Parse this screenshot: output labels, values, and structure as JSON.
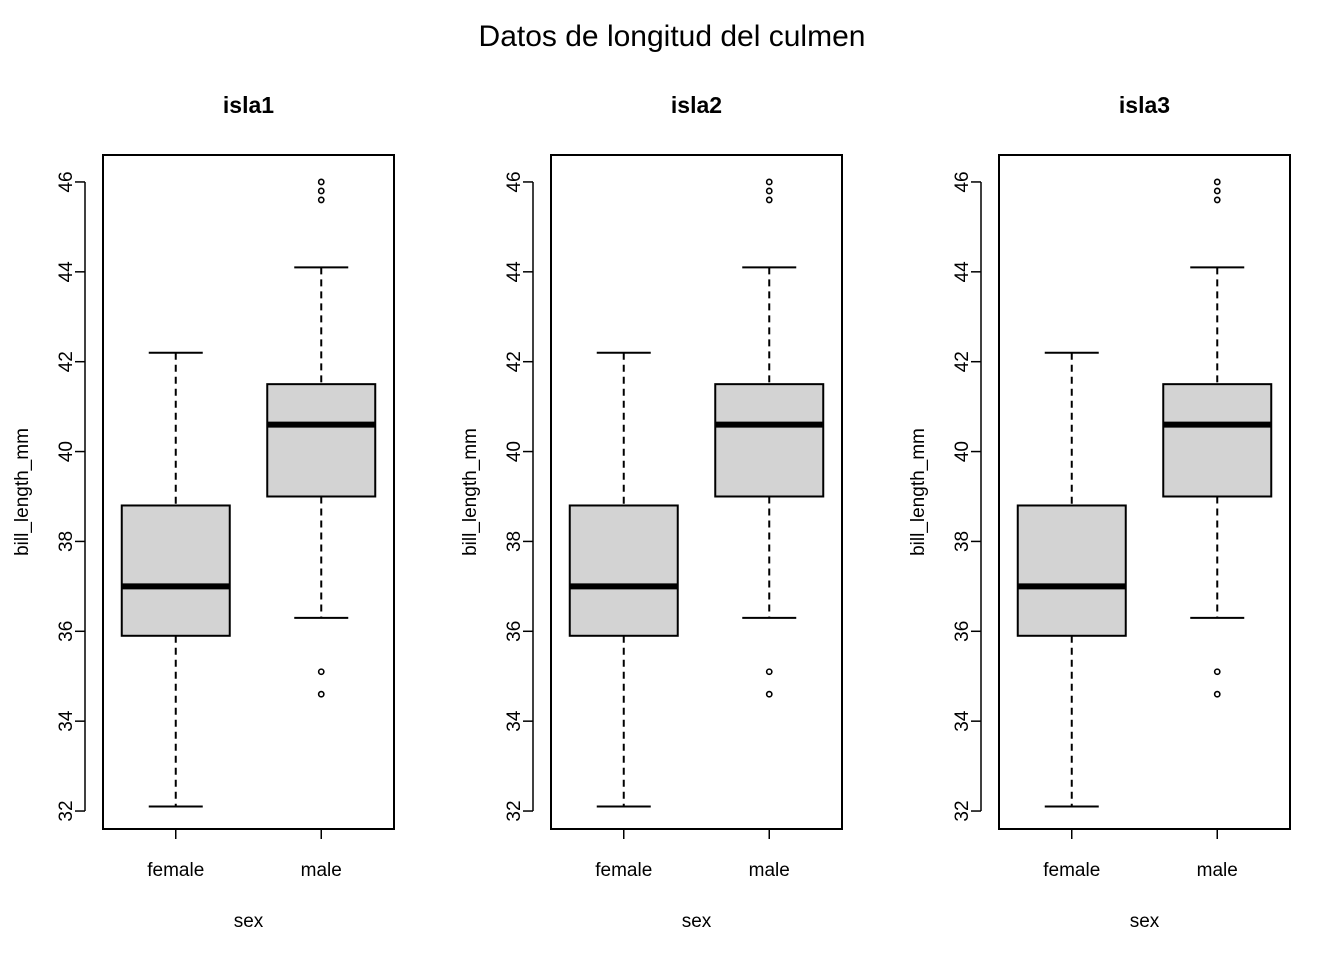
{
  "chart_data": {
    "title": "Datos de longitud del culmen",
    "type": "box",
    "panels": [
      {
        "title": "isla1",
        "xlabel": "sex",
        "ylabel": "bill_length_mm",
        "categories": [
          "female",
          "male"
        ],
        "ylim": [
          31.6,
          46.6
        ],
        "yticks": [
          32,
          34,
          36,
          38,
          40,
          42,
          44,
          46
        ],
        "boxes": [
          {
            "category": "female",
            "whisker_low": 32.1,
            "q1": 35.9,
            "median": 37.0,
            "q3": 38.8,
            "whisker_high": 42.2,
            "outliers": []
          },
          {
            "category": "male",
            "whisker_low": 36.3,
            "q1": 39.0,
            "median": 40.6,
            "q3": 41.5,
            "whisker_high": 44.1,
            "outliers": [
              34.6,
              35.1,
              45.6,
              45.8,
              46.0
            ]
          }
        ]
      },
      {
        "title": "isla2",
        "xlabel": "sex",
        "ylabel": "bill_length_mm",
        "categories": [
          "female",
          "male"
        ],
        "ylim": [
          31.6,
          46.6
        ],
        "yticks": [
          32,
          34,
          36,
          38,
          40,
          42,
          44,
          46
        ],
        "boxes": [
          {
            "category": "female",
            "whisker_low": 32.1,
            "q1": 35.9,
            "median": 37.0,
            "q3": 38.8,
            "whisker_high": 42.2,
            "outliers": []
          },
          {
            "category": "male",
            "whisker_low": 36.3,
            "q1": 39.0,
            "median": 40.6,
            "q3": 41.5,
            "whisker_high": 44.1,
            "outliers": [
              34.6,
              35.1,
              45.6,
              45.8,
              46.0
            ]
          }
        ]
      },
      {
        "title": "isla3",
        "xlabel": "sex",
        "ylabel": "bill_length_mm",
        "categories": [
          "female",
          "male"
        ],
        "ylim": [
          31.6,
          46.6
        ],
        "yticks": [
          32,
          34,
          36,
          38,
          40,
          42,
          44,
          46
        ],
        "boxes": [
          {
            "category": "female",
            "whisker_low": 32.1,
            "q1": 35.9,
            "median": 37.0,
            "q3": 38.8,
            "whisker_high": 42.2,
            "outliers": []
          },
          {
            "category": "male",
            "whisker_low": 36.3,
            "q1": 39.0,
            "median": 40.6,
            "q3": 41.5,
            "whisker_high": 44.1,
            "outliers": [
              34.6,
              35.1,
              45.6,
              45.8,
              46.0
            ]
          }
        ]
      }
    ],
    "box_fill": "#d3d3d3",
    "line_color": "#000000"
  }
}
